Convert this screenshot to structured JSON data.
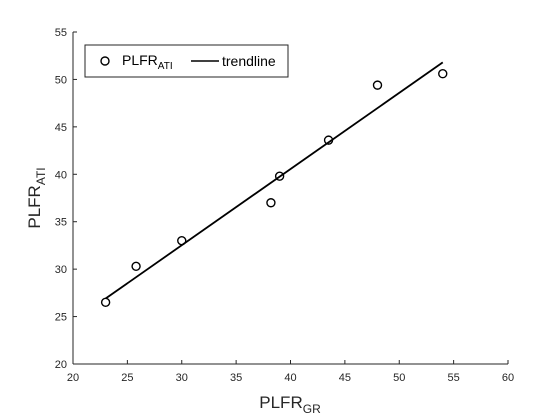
{
  "chart_data": {
    "type": "scatter",
    "title": "",
    "xlabel": {
      "main": "PLFR",
      "sub": "GR"
    },
    "ylabel": {
      "main": "PLFR",
      "sub": "ATI"
    },
    "xlim": [
      20,
      60
    ],
    "ylim": [
      20,
      55
    ],
    "xticks": [
      20,
      25,
      30,
      35,
      40,
      45,
      50,
      55,
      60
    ],
    "yticks": [
      20,
      25,
      30,
      35,
      40,
      45,
      50,
      55
    ],
    "grid": false,
    "legend_placement": "top-left",
    "series": [
      {
        "name": {
          "main": "PLFR",
          "sub": "ATI"
        },
        "type": "scatter",
        "marker": "circle-open",
        "x": [
          23.0,
          25.8,
          30.0,
          38.2,
          39.0,
          43.5,
          48.0,
          54.0
        ],
        "y": [
          26.5,
          30.3,
          33.0,
          37.0,
          39.8,
          43.6,
          49.4,
          50.6
        ]
      },
      {
        "name": "trendline",
        "type": "line",
        "x": [
          23.0,
          54.0
        ],
        "y": [
          26.9,
          51.8
        ]
      }
    ],
    "colors": {
      "axis": "#262626",
      "marker": "#000000",
      "line": "#000000",
      "legend_border": "#262626"
    }
  }
}
